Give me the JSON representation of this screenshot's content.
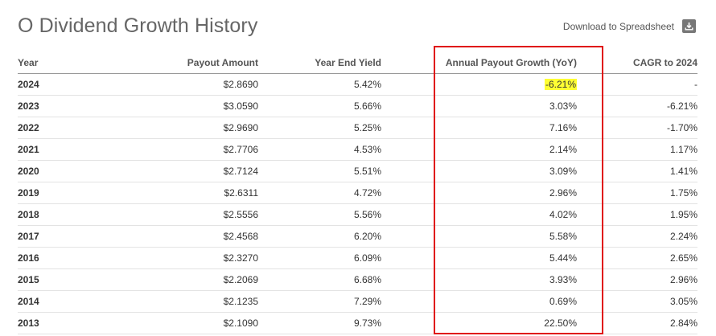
{
  "title": "O Dividend Growth History",
  "download": {
    "label": "Download to Spreadsheet",
    "icon": "download-icon"
  },
  "table": {
    "headers": [
      "Year",
      "Payout Amount",
      "Year End Yield",
      "Annual Payout Growth (YoY)",
      "CAGR to 2024"
    ],
    "rows": [
      [
        "2024",
        "$2.8690",
        "5.42%",
        "-6.21%",
        "-"
      ],
      [
        "2023",
        "$3.0590",
        "5.66%",
        "3.03%",
        "-6.21%"
      ],
      [
        "2022",
        "$2.9690",
        "5.25%",
        "7.16%",
        "-1.70%"
      ],
      [
        "2021",
        "$2.7706",
        "4.53%",
        "2.14%",
        "1.17%"
      ],
      [
        "2020",
        "$2.7124",
        "5.51%",
        "3.09%",
        "1.41%"
      ],
      [
        "2019",
        "$2.6311",
        "4.72%",
        "2.96%",
        "1.75%"
      ],
      [
        "2018",
        "$2.5556",
        "5.56%",
        "4.02%",
        "1.95%"
      ],
      [
        "2017",
        "$2.4568",
        "6.20%",
        "5.58%",
        "2.24%"
      ],
      [
        "2016",
        "$2.3270",
        "6.09%",
        "5.44%",
        "2.65%"
      ],
      [
        "2015",
        "$2.2069",
        "6.68%",
        "3.93%",
        "2.96%"
      ],
      [
        "2014",
        "$2.1235",
        "7.29%",
        "0.69%",
        "3.05%"
      ],
      [
        "2013",
        "$2.1090",
        "9.73%",
        "22.50%",
        "2.84%"
      ]
    ]
  },
  "colors": {
    "highlight": "#ffff33",
    "annotation_box": "#e01010"
  }
}
